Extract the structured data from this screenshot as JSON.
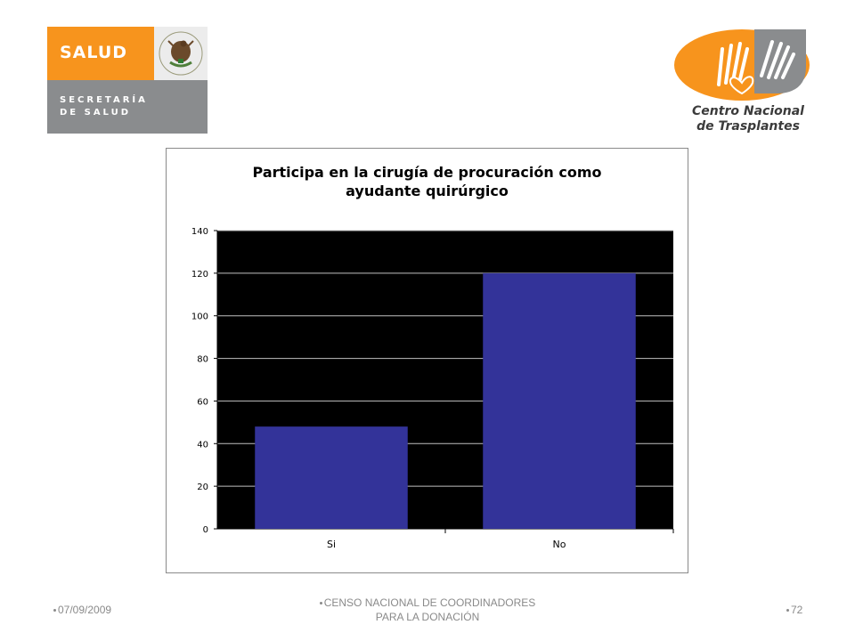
{
  "logos": {
    "salud": {
      "word": "SALUD",
      "line1": "SECRETARÍA",
      "line2": "DE SALUD",
      "orange": "#f7941d",
      "gray": "#8a8c8e",
      "seal_icon": "mexican-coat-of-arms-icon"
    },
    "cnt": {
      "line1": "Centro Nacional",
      "line2": "de Trasplantes",
      "orange": "#f7941d",
      "icon": "hands-heart-icon"
    }
  },
  "chart_data": {
    "type": "bar",
    "title_lines": [
      "Participa en la cirugía de procuración como",
      "ayudante quirúrgico"
    ],
    "categories": [
      "Si",
      "No"
    ],
    "values": [
      48,
      120
    ],
    "ylim": [
      0,
      140
    ],
    "yticks": [
      0,
      20,
      40,
      60,
      80,
      100,
      120,
      140
    ],
    "grid": true,
    "legend": "none",
    "bar_color": "#333399",
    "plot_background": "#000000",
    "grid_color": "#c0c0c0"
  },
  "footer": {
    "date": "07/09/2009",
    "center_line1": "CENSO NACIONAL DE COORDINADORES",
    "center_line2": "PARA LA DONACIÓN",
    "page": "72"
  }
}
